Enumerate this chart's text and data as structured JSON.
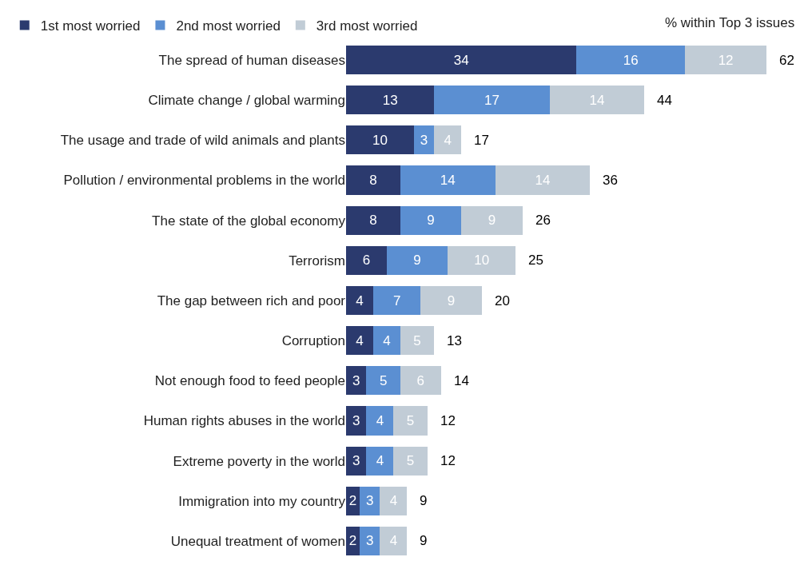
{
  "chart_data": {
    "type": "bar",
    "orientation": "horizontal",
    "stacked": true,
    "data_labels": true,
    "legend": "top",
    "categories": [
      "The spread of human diseases",
      "Climate change / global warming",
      "The usage and trade of wild animals and plants",
      "Pollution / environmental problems in the world",
      "The state of the global economy",
      "Terrorism",
      "The gap between rich and poor",
      "Corruption",
      "Not enough food to feed people",
      "Human rights abuses in the world",
      "Extreme poverty in the world",
      "Immigration into my country",
      "Unequal treatment of women"
    ],
    "series": [
      {
        "name": "1st most worried",
        "color": "#2b3a6e",
        "values": [
          34,
          13,
          10,
          8,
          8,
          6,
          4,
          4,
          3,
          3,
          3,
          2,
          2
        ]
      },
      {
        "name": "2nd most worried",
        "color": "#5b8fd2",
        "values": [
          16,
          17,
          3,
          14,
          9,
          9,
          7,
          4,
          5,
          4,
          4,
          3,
          3
        ]
      },
      {
        "name": "3rd most worried",
        "color": "#c1ccd6",
        "values": [
          12,
          14,
          4,
          14,
          9,
          10,
          9,
          5,
          6,
          5,
          5,
          4,
          4
        ]
      }
    ],
    "totals": [
      "62",
      "44",
      "17",
      "36",
      "26",
      "25",
      "20",
      "13",
      "14",
      "12",
      "12",
      "9",
      "9"
    ],
    "annotations": [
      "% within Top 3 issues"
    ]
  }
}
